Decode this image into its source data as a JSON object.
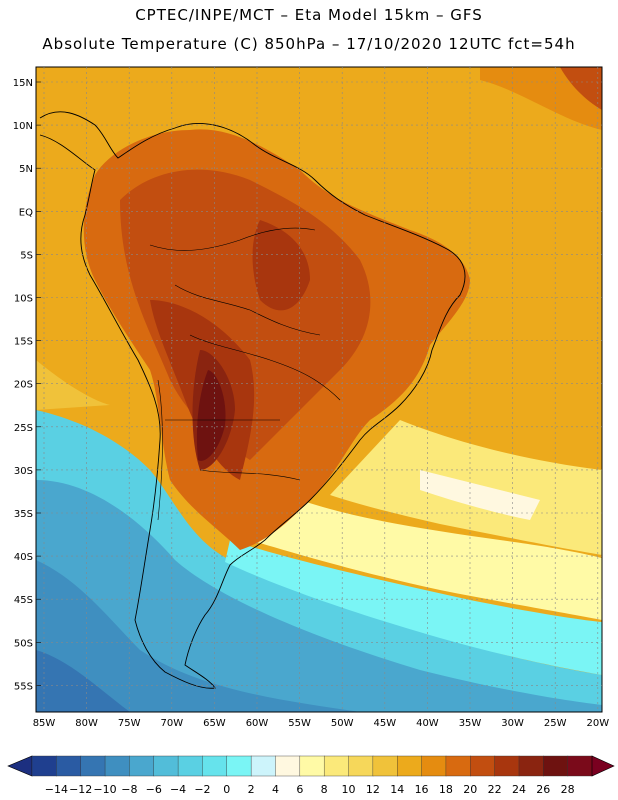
{
  "header": {
    "title_line1": "CPTEC/INPE/MCT –  Eta Model 15km – GFS",
    "title_line2": "Absolute Temperature (C) 850hPa – 17/10/2020 12UTC fct=54h"
  },
  "map": {
    "lat_labels": [
      "15N",
      "10N",
      "5N",
      "EQ",
      "5S",
      "10S",
      "15S",
      "20S",
      "25S",
      "30S",
      "35S",
      "40S",
      "45S",
      "50S",
      "55S"
    ],
    "lon_labels": [
      "85W",
      "80W",
      "75W",
      "70W",
      "65W",
      "60W",
      "55W",
      "50W",
      "45W",
      "40W",
      "35W",
      "30W",
      "25W",
      "20W"
    ]
  },
  "colorbar": {
    "labels": [
      "-14",
      "-12",
      "-10",
      "-8",
      "-6",
      "-4",
      "-2",
      "0",
      "2",
      "4",
      "6",
      "8",
      "10",
      "12",
      "14",
      "16",
      "18",
      "20",
      "22",
      "24",
      "26",
      "28"
    ],
    "colors": [
      "#1f3f8f",
      "#2a5ba3",
      "#3575b2",
      "#3f8fc0",
      "#4aa7ce",
      "#52bdd9",
      "#5ad0e3",
      "#66e3ec",
      "#7af5f5",
      "#cdf4fb",
      "#fff8e0",
      "#fffaa6",
      "#fbe97a",
      "#f6d75a",
      "#f0c23a",
      "#ecaa1c",
      "#e58c10",
      "#d86a10",
      "#c24e10",
      "#a8360e",
      "#8a2410",
      "#6e1210",
      "#7a0a1a"
    ],
    "below_color": "#1c2f80",
    "above_color": "#7a0020"
  }
}
